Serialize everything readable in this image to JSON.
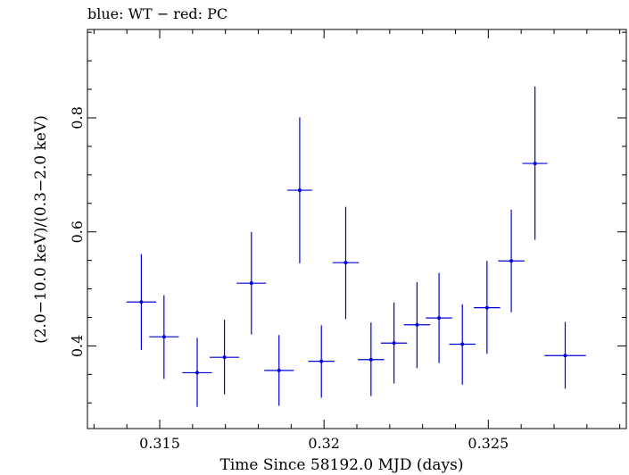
{
  "chart_data": {
    "type": "scatter",
    "title": "blue: WT − red: PC",
    "xlabel": "Time Since 58192.0 MJD (days)",
    "ylabel": "(2.0−10.0 keV)/(0.3−2.0 keV)",
    "xlim": [
      0.3128,
      0.3292
    ],
    "ylim": [
      0.255,
      0.955
    ],
    "x_ticks": [
      0.315,
      0.32,
      0.325
    ],
    "x_tick_labels": [
      "0.315",
      "0.32",
      "0.325"
    ],
    "y_ticks": [
      0.4,
      0.6,
      0.8
    ],
    "y_tick_labels": [
      "0.4",
      "0.6",
      "0.8"
    ],
    "grid": false,
    "series": [
      {
        "name": "WT",
        "color": "#0000dd",
        "points": [
          {
            "x": 0.31444,
            "xerr": 0.00045,
            "y": 0.477,
            "ylo": 0.393,
            "yhi": 0.561
          },
          {
            "x": 0.31513,
            "xerr": 0.00045,
            "y": 0.416,
            "ylo": 0.342,
            "yhi": 0.489
          },
          {
            "x": 0.31614,
            "xerr": 0.00045,
            "y": 0.353,
            "ylo": 0.293,
            "yhi": 0.414
          },
          {
            "x": 0.31697,
            "xerr": 0.00045,
            "y": 0.38,
            "ylo": 0.315,
            "yhi": 0.446
          },
          {
            "x": 0.31779,
            "xerr": 0.00045,
            "y": 0.51,
            "ylo": 0.42,
            "yhi": 0.6
          },
          {
            "x": 0.31863,
            "xerr": 0.00045,
            "y": 0.357,
            "ylo": 0.295,
            "yhi": 0.419
          },
          {
            "x": 0.31926,
            "xerr": 0.00038,
            "y": 0.673,
            "ylo": 0.545,
            "yhi": 0.801
          },
          {
            "x": 0.31992,
            "xerr": 0.0004,
            "y": 0.373,
            "ylo": 0.309,
            "yhi": 0.436
          },
          {
            "x": 0.32066,
            "xerr": 0.0004,
            "y": 0.546,
            "ylo": 0.447,
            "yhi": 0.644
          },
          {
            "x": 0.32143,
            "xerr": 0.0004,
            "y": 0.376,
            "ylo": 0.312,
            "yhi": 0.441
          },
          {
            "x": 0.32213,
            "xerr": 0.0004,
            "y": 0.405,
            "ylo": 0.334,
            "yhi": 0.476
          },
          {
            "x": 0.32283,
            "xerr": 0.0004,
            "y": 0.437,
            "ylo": 0.361,
            "yhi": 0.512
          },
          {
            "x": 0.3235,
            "xerr": 0.0004,
            "y": 0.449,
            "ylo": 0.37,
            "yhi": 0.528
          },
          {
            "x": 0.32421,
            "xerr": 0.0004,
            "y": 0.403,
            "ylo": 0.332,
            "yhi": 0.473
          },
          {
            "x": 0.32496,
            "xerr": 0.0004,
            "y": 0.467,
            "ylo": 0.386,
            "yhi": 0.549
          },
          {
            "x": 0.3257,
            "xerr": 0.0004,
            "y": 0.549,
            "ylo": 0.459,
            "yhi": 0.639
          },
          {
            "x": 0.32642,
            "xerr": 0.00038,
            "y": 0.72,
            "ylo": 0.586,
            "yhi": 0.855
          },
          {
            "x": 0.32734,
            "xerr": 0.00063,
            "y": 0.383,
            "ylo": 0.325,
            "yhi": 0.442
          }
        ]
      }
    ]
  }
}
